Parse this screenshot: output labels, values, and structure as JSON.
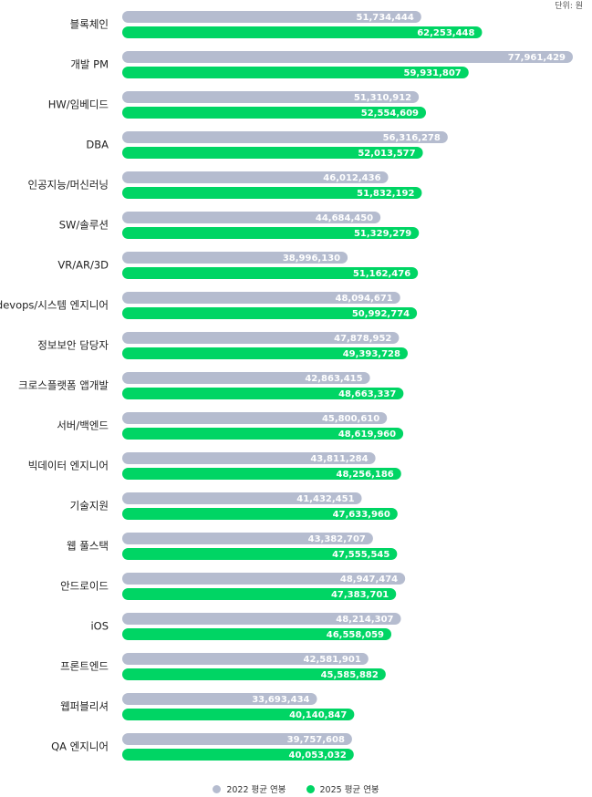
{
  "unit_label": "단위: 원",
  "colors": {
    "series_2022": "#b5bccf",
    "series_2025": "#00d564"
  },
  "chart_data": {
    "type": "bar",
    "orientation": "horizontal",
    "categories": [
      "블록체인",
      "개발 PM",
      "HW/임베디드",
      "DBA",
      "인공지능/머신러닝",
      "SW/솔루션",
      "VR/AR/3D",
      "devops/시스템 엔지니어",
      "정보보안 담당자",
      "크로스플랫폼 앱개발",
      "서버/백엔드",
      "빅데이터 엔지니어",
      "기술지원",
      "웹 풀스택",
      "안드로이드",
      "iOS",
      "프론트엔드",
      "웹퍼블리셔",
      "QA 엔지니어"
    ],
    "series": [
      {
        "name": "2022 평균 연봉",
        "values": [
          51734444,
          77961429,
          51310912,
          56316278,
          46012436,
          44684450,
          38996130,
          48094671,
          47878952,
          42863415,
          45800610,
          43811284,
          41432451,
          43382707,
          48947474,
          48214307,
          42581901,
          33693434,
          39757608
        ],
        "labels": [
          "51,734,444",
          "77,961,429",
          "51,310,912",
          "56,316,278",
          "46,012,436",
          "44,684,450",
          "38,996,130",
          "48,094,671",
          "47,878,952",
          "42,863,415",
          "45,800,610",
          "43,811,284",
          "41,432,451",
          "43,382,707",
          "48,947,474",
          "48,214,307",
          "42,581,901",
          "33,693,434",
          "39,757,608"
        ]
      },
      {
        "name": "2025 평균 연봉",
        "values": [
          62253448,
          59931807,
          52554609,
          52013577,
          51832192,
          51329279,
          51162476,
          50992774,
          49393728,
          48663337,
          48619960,
          48256186,
          47633960,
          47555545,
          47383701,
          46558059,
          45585882,
          40140847,
          40053032
        ],
        "labels": [
          "62,253,448",
          "59,931,807",
          "52,554,609",
          "52,013,577",
          "51,832,192",
          "51,329,279",
          "51,162,476",
          "50,992,774",
          "49,393,728",
          "48,663,337",
          "48,619,960",
          "48,256,186",
          "47,633,960",
          "47,555,545",
          "47,383,701",
          "46,558,059",
          "45,585,882",
          "40,140,847",
          "40,053,032"
        ]
      }
    ],
    "legend_position": "bottom-center",
    "grid": false
  }
}
